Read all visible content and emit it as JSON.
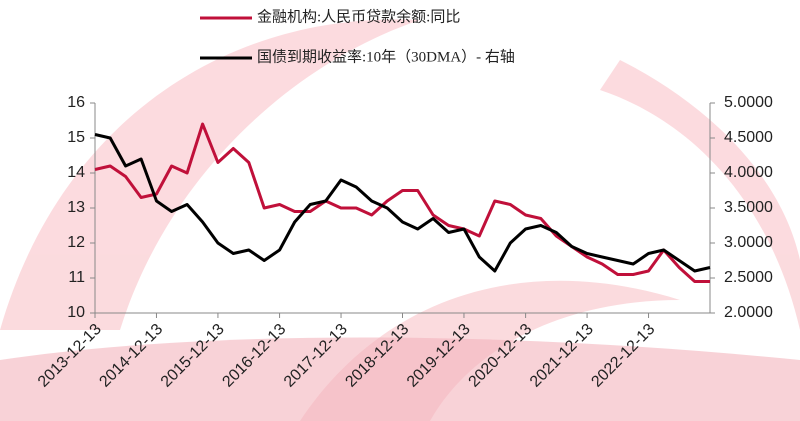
{
  "chart_data": {
    "type": "line",
    "x": [
      "2013-12-13",
      "2014-03-13",
      "2014-06-13",
      "2014-09-13",
      "2014-12-13",
      "2015-03-13",
      "2015-06-13",
      "2015-09-13",
      "2015-12-13",
      "2016-03-13",
      "2016-06-13",
      "2016-09-13",
      "2016-12-13",
      "2017-03-13",
      "2017-06-13",
      "2017-09-13",
      "2017-12-13",
      "2018-03-13",
      "2018-06-13",
      "2018-09-13",
      "2018-12-13",
      "2019-03-13",
      "2019-06-13",
      "2019-09-13",
      "2019-12-13",
      "2020-03-13",
      "2020-06-13",
      "2020-09-13",
      "2020-12-13",
      "2021-03-13",
      "2021-06-13",
      "2021-09-13",
      "2021-12-13",
      "2022-03-13",
      "2022-06-13",
      "2022-09-13",
      "2022-12-13",
      "2023-03-13",
      "2023-06-13",
      "2023-09-13",
      "2023-12-13"
    ],
    "series": [
      {
        "name": "金融机构:人民币贷款余额:同比",
        "color": "#c0103a",
        "values": [
          14.1,
          14.2,
          13.9,
          13.3,
          13.4,
          14.2,
          14.0,
          15.4,
          14.3,
          14.7,
          14.3,
          13.0,
          13.1,
          12.9,
          12.9,
          13.2,
          13.0,
          13.0,
          12.8,
          13.2,
          13.5,
          13.5,
          12.8,
          12.5,
          12.4,
          12.2,
          13.2,
          13.1,
          12.8,
          12.7,
          12.2,
          11.9,
          11.6,
          11.4,
          11.1,
          11.1,
          11.2,
          11.8,
          11.3,
          10.9,
          10.9
        ]
      },
      {
        "name": "国债到期收益率:10年（30DMA）- 右轴",
        "color": "#000000",
        "axis": "y2",
        "values": [
          4.55,
          4.5,
          4.1,
          4.2,
          3.6,
          3.45,
          3.55,
          3.3,
          3.0,
          2.85,
          2.9,
          2.75,
          2.9,
          3.3,
          3.55,
          3.6,
          3.9,
          3.8,
          3.6,
          3.5,
          3.3,
          3.2,
          3.35,
          3.15,
          3.2,
          2.8,
          2.6,
          3.0,
          3.2,
          3.25,
          3.15,
          2.95,
          2.85,
          2.8,
          2.75,
          2.7,
          2.85,
          2.9,
          2.75,
          2.6,
          2.65
        ]
      }
    ],
    "xlim": [
      "2013-12-13",
      "2023-12-13"
    ],
    "xticks": [
      "2013-12-13",
      "2014-12-13",
      "2015-12-13",
      "2016-12-13",
      "2017-12-13",
      "2018-12-13",
      "2019-12-13",
      "2020-12-13",
      "2021-12-13",
      "2022-12-13"
    ],
    "ylim": [
      10,
      16
    ],
    "yticks": [
      10,
      11,
      12,
      13,
      14,
      15,
      16
    ],
    "y2lim": [
      2,
      5
    ],
    "y2ticks": [
      {
        "value": 2,
        "label": "2.0000"
      },
      {
        "value": 2.5,
        "label": "2.5000"
      },
      {
        "value": 3,
        "label": "3.0000"
      },
      {
        "value": 3.5,
        "label": "3.5000"
      },
      {
        "value": 4,
        "label": "4.0000"
      },
      {
        "value": 4.5,
        "label": "4.5000"
      },
      {
        "value": 5,
        "label": "5.0000"
      }
    ]
  }
}
